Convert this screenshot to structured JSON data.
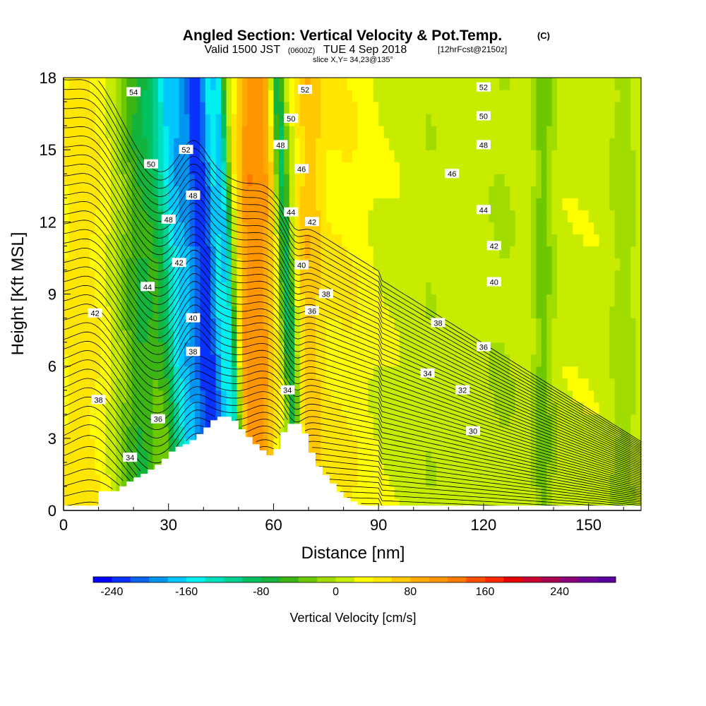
{
  "chart_data": {
    "type": "heatmap",
    "title": {
      "main": "Angled Section: Vertical Velocity & Pot.Temp.",
      "copyright": "(C)",
      "valid_prefix": "Valid 1500 JST",
      "utc": "(0600Z)",
      "date": "TUE 4 Sep 2018",
      "forecast": "[12hrFcst@2150z]",
      "slice": "slice X,Y= 34,23@135°"
    },
    "xlabel": "Distance [nm]",
    "ylabel": "Height [Kft MSL]",
    "xlim": [
      0,
      165
    ],
    "ylim": [
      0,
      18
    ],
    "x_ticks": [
      "0",
      "30",
      "60",
      "90",
      "120",
      "150"
    ],
    "x_tick_values": [
      0,
      30,
      60,
      90,
      120,
      150
    ],
    "y_ticks": [
      "0",
      "3",
      "6",
      "9",
      "12",
      "15",
      "18"
    ],
    "y_tick_values": [
      0,
      3,
      6,
      9,
      12,
      15,
      18
    ],
    "colorbar": {
      "label": "Vertical Velocity [cm/s]",
      "ticks": [
        "-240",
        "-160",
        "-80",
        "0",
        "80",
        "160",
        "240"
      ],
      "min": -260,
      "max": 300,
      "step": 20,
      "colors": [
        "#0000ff",
        "#0a32ff",
        "#0a64f0",
        "#0096f0",
        "#00c8ff",
        "#00f0f0",
        "#00e0c0",
        "#00d090",
        "#00c060",
        "#14b43c",
        "#3cb414",
        "#6ec800",
        "#a0dc00",
        "#c8ec00",
        "#ffff00",
        "#ffe600",
        "#ffc800",
        "#ffaa00",
        "#ff9600",
        "#ff7800",
        "#ff5000",
        "#ff2800",
        "#e60000",
        "#c80030",
        "#aa0050",
        "#8c0078",
        "#6e0096",
        "#5a00a0"
      ]
    },
    "series": [
      {
        "description": "vertical velocity columns (center distance nm, half-width nm, peak cm/s)",
        "columns": [
          {
            "x": 5,
            "w": 8,
            "v": 35
          },
          {
            "x": 22,
            "w": 6,
            "v": -75
          },
          {
            "x": 33,
            "w": 5,
            "v": -160
          },
          {
            "x": 41,
            "w": 5,
            "v": -235
          },
          {
            "x": 47,
            "w": 2,
            "v": -120
          },
          {
            "x": 53,
            "w": 4,
            "v": 95
          },
          {
            "x": 58,
            "w": 3,
            "v": 60
          },
          {
            "x": 64,
            "w": 2,
            "v": -110
          },
          {
            "x": 70,
            "w": 4,
            "v": 55
          },
          {
            "x": 80,
            "w": 8,
            "v": 25
          },
          {
            "x": 105,
            "w": 6,
            "v": -10
          },
          {
            "x": 125,
            "w": 5,
            "v": -15
          },
          {
            "x": 137,
            "w": 3,
            "v": -45
          },
          {
            "x": 160,
            "w": 4,
            "v": -25
          }
        ]
      }
    ],
    "terrain": {
      "x": [
        10,
        15,
        20,
        24,
        28,
        32,
        36,
        40,
        44,
        48,
        52,
        56,
        60,
        64,
        68,
        72,
        76,
        80,
        84,
        88
      ],
      "height": [
        0.8,
        0.8,
        1.3,
        1.6,
        2.0,
        2.6,
        2.8,
        3.3,
        3.9,
        3.9,
        3.2,
        2.6,
        2.2,
        3.6,
        3.6,
        2.0,
        1.3,
        0.6,
        0.3,
        0.0
      ]
    },
    "theta_contours": {
      "levels": [
        30,
        32,
        34,
        36,
        38,
        40,
        42,
        44,
        46,
        48,
        50,
        52,
        54
      ],
      "labels": [
        {
          "text": "54",
          "x": 20,
          "y": 17.4
        },
        {
          "text": "52",
          "x": 35,
          "y": 15.0
        },
        {
          "text": "50",
          "x": 25,
          "y": 14.4
        },
        {
          "text": "48",
          "x": 37,
          "y": 13.1
        },
        {
          "text": "48",
          "x": 30,
          "y": 12.1
        },
        {
          "text": "42",
          "x": 33,
          "y": 10.3
        },
        {
          "text": "44",
          "x": 24,
          "y": 9.3
        },
        {
          "text": "42",
          "x": 9,
          "y": 8.2
        },
        {
          "text": "40",
          "x": 37,
          "y": 8.0
        },
        {
          "text": "38",
          "x": 37,
          "y": 6.6
        },
        {
          "text": "38",
          "x": 10,
          "y": 4.6
        },
        {
          "text": "36",
          "x": 27,
          "y": 3.8
        },
        {
          "text": "34",
          "x": 19,
          "y": 2.2
        },
        {
          "text": "52",
          "x": 69,
          "y": 17.5
        },
        {
          "text": "50",
          "x": 65,
          "y": 16.3
        },
        {
          "text": "48",
          "x": 62,
          "y": 15.2
        },
        {
          "text": "46",
          "x": 68,
          "y": 14.2
        },
        {
          "text": "44",
          "x": 65,
          "y": 12.4
        },
        {
          "text": "42",
          "x": 71,
          "y": 12.0
        },
        {
          "text": "40",
          "x": 68,
          "y": 10.2
        },
        {
          "text": "38",
          "x": 75,
          "y": 9.0
        },
        {
          "text": "36",
          "x": 71,
          "y": 8.3
        },
        {
          "text": "34",
          "x": 64,
          "y": 5.0
        },
        {
          "text": "52",
          "x": 120,
          "y": 17.6
        },
        {
          "text": "50",
          "x": 120,
          "y": 16.4
        },
        {
          "text": "48",
          "x": 120,
          "y": 15.2
        },
        {
          "text": "46",
          "x": 111,
          "y": 14.0
        },
        {
          "text": "44",
          "x": 120,
          "y": 12.5
        },
        {
          "text": "42",
          "x": 123,
          "y": 11.0
        },
        {
          "text": "40",
          "x": 123,
          "y": 9.5
        },
        {
          "text": "38",
          "x": 107,
          "y": 7.8
        },
        {
          "text": "36",
          "x": 120,
          "y": 6.8
        },
        {
          "text": "34",
          "x": 104,
          "y": 5.7
        },
        {
          "text": "32",
          "x": 114,
          "y": 5.0
        },
        {
          "text": "30",
          "x": 117,
          "y": 3.3
        }
      ]
    }
  }
}
